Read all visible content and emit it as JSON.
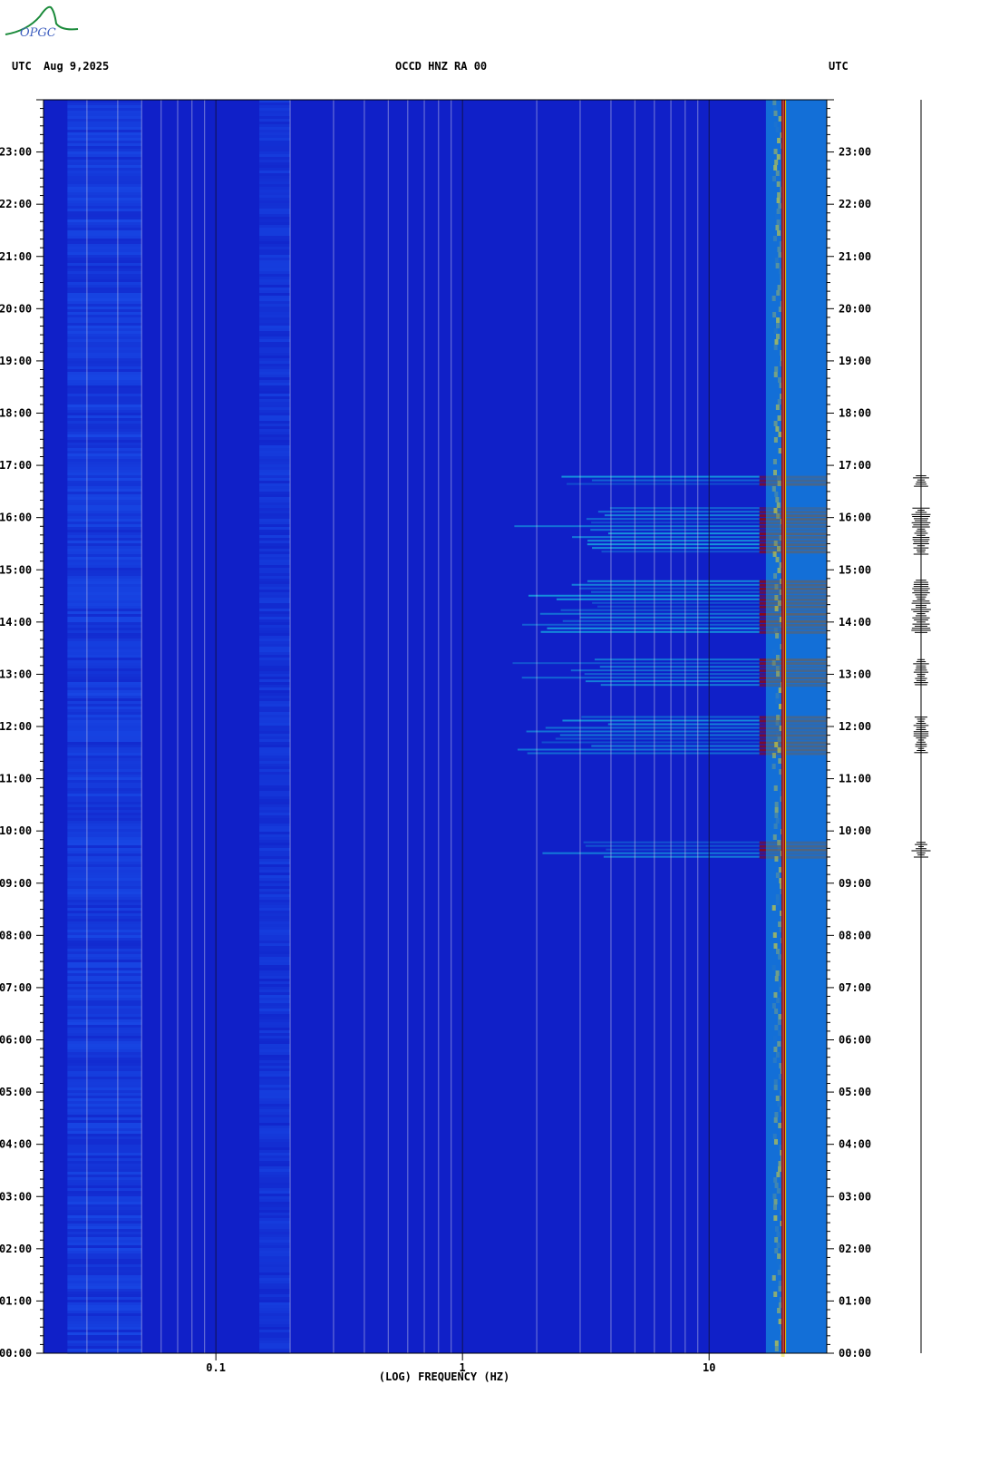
{
  "header": {
    "left_label": "UTC",
    "date": "Aug 9,2025",
    "station": "OCCD HNZ RA 00",
    "right_label": "UTC"
  },
  "logo": {
    "text": "OPGC",
    "color": "#1a8a3a"
  },
  "chart_data": {
    "type": "heatmap",
    "title": "OCCD HNZ RA 00",
    "xlabel": "(LOG) FREQUENCY (HZ)",
    "xscale": "log",
    "xlim": [
      0.02,
      30
    ],
    "x_tick_labels": [
      {
        "value": 0.1,
        "label": "0.1"
      },
      {
        "value": 1,
        "label": "1"
      },
      {
        "value": 10,
        "label": "10"
      }
    ],
    "ylabel": "UTC",
    "ylim_hours": [
      0,
      24
    ],
    "y_tick_labels": [
      "00:00",
      "01:00",
      "02:00",
      "03:00",
      "04:00",
      "05:00",
      "06:00",
      "07:00",
      "08:00",
      "09:00",
      "10:00",
      "11:00",
      "12:00",
      "13:00",
      "14:00",
      "15:00",
      "16:00",
      "17:00",
      "18:00",
      "19:00",
      "20:00",
      "21:00",
      "22:00",
      "23:00"
    ],
    "colors": {
      "background": "#1020c8",
      "low": "#0a10a8",
      "mid": "#1f6cff",
      "high": "#18d0e8",
      "peak": "#9a0800",
      "grid": "#c8c8e8"
    },
    "notch_frequency_hz": 20,
    "event_windows_hours": [
      {
        "start": 9.5,
        "end": 9.8,
        "strength": 1.0
      },
      {
        "start": 11.5,
        "end": 12.2,
        "strength": 0.8
      },
      {
        "start": 12.8,
        "end": 13.3,
        "strength": 0.75
      },
      {
        "start": 13.8,
        "end": 14.8,
        "strength": 1.0
      },
      {
        "start": 15.3,
        "end": 16.2,
        "strength": 1.0
      },
      {
        "start": 16.6,
        "end": 16.8,
        "strength": 0.9
      }
    ]
  }
}
